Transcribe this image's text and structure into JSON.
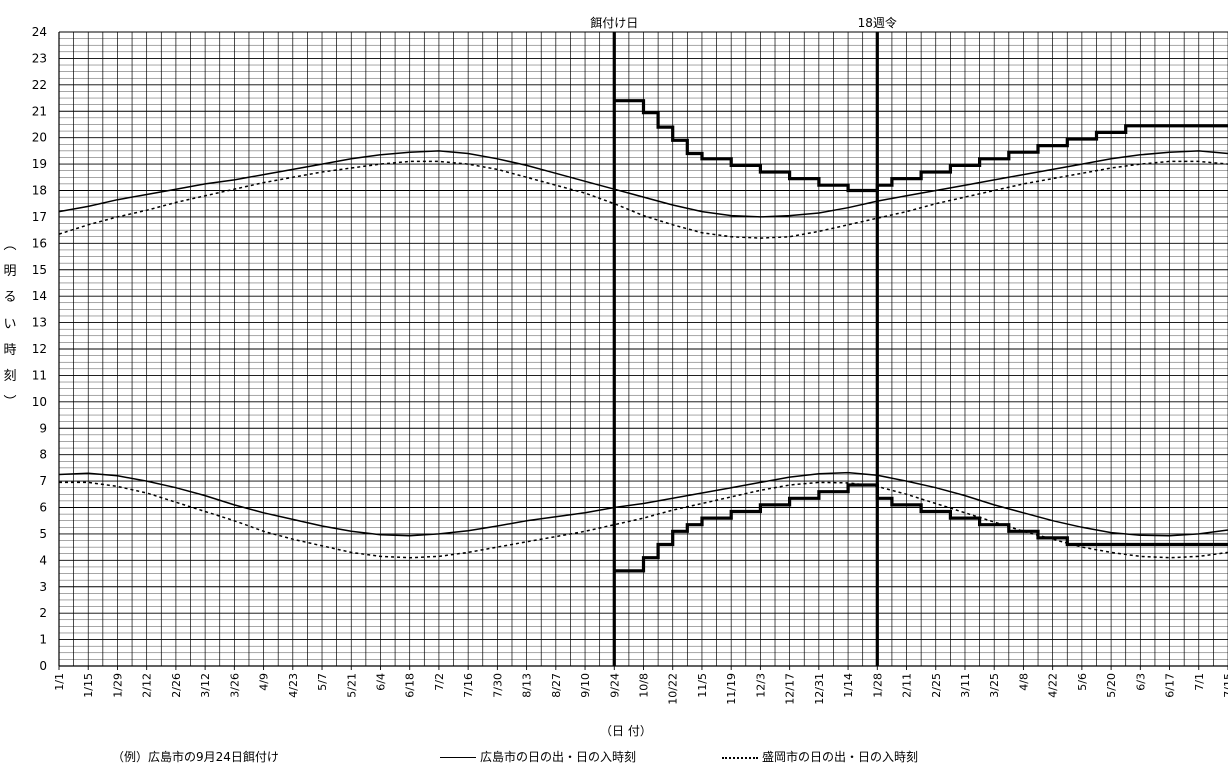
{
  "chart_data": {
    "type": "line",
    "title": "",
    "xlabel": "（日 付）",
    "ylabel": "（明るい時刻）",
    "ylim": [
      0,
      24
    ],
    "y_ticks": [
      0,
      1,
      2,
      3,
      4,
      5,
      6,
      7,
      8,
      9,
      10,
      11,
      12,
      13,
      14,
      15,
      16,
      17,
      18,
      19,
      20,
      21,
      22,
      23,
      24
    ],
    "x_tick_labels": [
      "1/1",
      "1/15",
      "1/29",
      "2/12",
      "2/26",
      "3/12",
      "3/26",
      "4/9",
      "4/23",
      "5/7",
      "5/21",
      "6/4",
      "6/18",
      "7/2",
      "7/16",
      "7/30",
      "8/13",
      "8/27",
      "9/10",
      "9/24",
      "10/8",
      "10/22",
      "11/5",
      "11/19",
      "12/3",
      "12/17",
      "12/31",
      "1/14",
      "1/28",
      "2/11",
      "2/25",
      "3/11",
      "3/25",
      "4/8",
      "4/22",
      "5/6",
      "5/20",
      "6/3",
      "6/17",
      "7/1",
      "7/15"
    ],
    "xlim": [
      0,
      560
    ],
    "grid": true,
    "annotations": [
      {
        "text": "餌付け日",
        "x": 266
      },
      {
        "text": "18週令",
        "x": 392
      }
    ],
    "example_note": "（例）広島市の9月24日餌付け",
    "legend": [
      {
        "name": "広島市の日の出・日の入時刻",
        "style": "solid"
      },
      {
        "name": "盛岡市の日の出・日の入時刻",
        "style": "dotted"
      }
    ],
    "series": [
      {
        "name": "広島市の日の出・日の入時刻",
        "style": "solid",
        "part": "sunset",
        "x": [
          0,
          14,
          28,
          42,
          56,
          70,
          84,
          98,
          112,
          126,
          140,
          154,
          168,
          182,
          196,
          210,
          224,
          238,
          252,
          266,
          280,
          294,
          308,
          322,
          336,
          350,
          364,
          378,
          392,
          406,
          420,
          434,
          448,
          462,
          476,
          490,
          504,
          518,
          532,
          546,
          560
        ],
        "y": [
          17.2,
          17.4,
          17.65,
          17.85,
          18.05,
          18.25,
          18.4,
          18.6,
          18.8,
          19.0,
          19.2,
          19.35,
          19.45,
          19.5,
          19.4,
          19.2,
          18.95,
          18.65,
          18.35,
          18.05,
          17.75,
          17.45,
          17.2,
          17.05,
          17.0,
          17.05,
          17.15,
          17.35,
          17.6,
          17.8,
          18.0,
          18.2,
          18.4,
          18.6,
          18.8,
          19.0,
          19.2,
          19.35,
          19.45,
          19.5,
          19.4
        ]
      },
      {
        "name": "広島市の日の出・日の入時刻",
        "style": "solid",
        "part": "sunrise",
        "x": [
          0,
          14,
          28,
          42,
          56,
          70,
          84,
          98,
          112,
          126,
          140,
          154,
          168,
          182,
          196,
          210,
          224,
          238,
          252,
          266,
          280,
          294,
          308,
          322,
          336,
          350,
          364,
          378,
          392,
          406,
          420,
          434,
          448,
          462,
          476,
          490,
          504,
          518,
          532,
          546,
          560
        ],
        "y": [
          7.25,
          7.3,
          7.2,
          7.0,
          6.75,
          6.45,
          6.1,
          5.8,
          5.55,
          5.3,
          5.1,
          4.97,
          4.93,
          5.0,
          5.12,
          5.3,
          5.5,
          5.65,
          5.8,
          6.0,
          6.15,
          6.35,
          6.55,
          6.75,
          6.95,
          7.15,
          7.28,
          7.32,
          7.22,
          7.0,
          6.75,
          6.45,
          6.1,
          5.8,
          5.5,
          5.25,
          5.05,
          4.95,
          4.93,
          5.0,
          5.15
        ]
      },
      {
        "name": "盛岡市の日の出・日の入時刻",
        "style": "dotted",
        "part": "sunset",
        "x": [
          0,
          14,
          28,
          42,
          56,
          70,
          84,
          98,
          112,
          126,
          140,
          154,
          168,
          182,
          196,
          210,
          224,
          238,
          252,
          266,
          280,
          294,
          308,
          322,
          336,
          350,
          364,
          378,
          392,
          406,
          420,
          434,
          448,
          462,
          476,
          490,
          504,
          518,
          532,
          546,
          560
        ],
        "y": [
          16.35,
          16.7,
          17.0,
          17.25,
          17.55,
          17.8,
          18.05,
          18.3,
          18.5,
          18.7,
          18.85,
          19.0,
          19.1,
          19.1,
          19.0,
          18.8,
          18.5,
          18.2,
          17.9,
          17.5,
          17.05,
          16.7,
          16.4,
          16.25,
          16.2,
          16.25,
          16.45,
          16.7,
          16.95,
          17.2,
          17.5,
          17.75,
          18.0,
          18.25,
          18.45,
          18.65,
          18.85,
          19.0,
          19.1,
          19.1,
          19.0
        ]
      },
      {
        "name": "盛岡市の日の出・日の入時刻",
        "style": "dotted",
        "part": "sunrise",
        "x": [
          0,
          14,
          28,
          42,
          56,
          70,
          84,
          98,
          112,
          126,
          140,
          154,
          168,
          182,
          196,
          210,
          224,
          238,
          252,
          266,
          280,
          294,
          308,
          322,
          336,
          350,
          364,
          378,
          392,
          406,
          420,
          434,
          448,
          462,
          476,
          490,
          504,
          518,
          532,
          546,
          560
        ],
        "y": [
          6.95,
          6.95,
          6.8,
          6.55,
          6.2,
          5.85,
          5.5,
          5.1,
          4.8,
          4.55,
          4.3,
          4.15,
          4.1,
          4.15,
          4.3,
          4.5,
          4.7,
          4.9,
          5.1,
          5.35,
          5.6,
          5.9,
          6.15,
          6.4,
          6.65,
          6.85,
          6.95,
          6.93,
          6.8,
          6.5,
          6.15,
          5.8,
          5.45,
          5.1,
          4.8,
          4.5,
          4.3,
          4.15,
          4.1,
          4.15,
          4.3
        ]
      },
      {
        "name": "light-program-end",
        "style": "thick-step",
        "part": "end",
        "x": [
          266,
          280,
          280,
          287,
          287,
          294,
          294,
          301,
          301,
          308,
          308,
          322,
          322,
          336,
          336,
          350,
          350,
          364,
          364,
          378,
          378,
          392,
          392,
          399,
          399,
          413,
          413,
          427,
          427,
          441,
          441,
          455,
          455,
          469,
          469,
          483,
          483,
          497,
          497,
          511,
          511,
          525,
          525,
          560
        ],
        "y": [
          21.4,
          21.4,
          20.95,
          20.95,
          20.4,
          20.4,
          19.9,
          19.9,
          19.4,
          19.4,
          19.2,
          19.2,
          18.95,
          18.95,
          18.7,
          18.7,
          18.45,
          18.45,
          18.2,
          18.2,
          18.0,
          18.0,
          18.2,
          18.2,
          18.45,
          18.45,
          18.7,
          18.7,
          18.95,
          18.95,
          19.2,
          19.2,
          19.45,
          19.45,
          19.7,
          19.7,
          19.95,
          19.95,
          20.2,
          20.2,
          20.45,
          20.45,
          20.45,
          20.45
        ]
      },
      {
        "name": "light-program-start",
        "style": "thick-step",
        "part": "start",
        "x": [
          266,
          280,
          280,
          287,
          287,
          294,
          294,
          301,
          301,
          308,
          308,
          322,
          322,
          336,
          336,
          350,
          350,
          364,
          364,
          378,
          378,
          392,
          392,
          399,
          399,
          413,
          413,
          427,
          427,
          441,
          441,
          455,
          455,
          469,
          469,
          483,
          483,
          497,
          497,
          511,
          511,
          525,
          525,
          560
        ],
        "y": [
          3.6,
          3.6,
          4.1,
          4.1,
          4.6,
          4.6,
          5.1,
          5.1,
          5.35,
          5.35,
          5.6,
          5.6,
          5.85,
          5.85,
          6.1,
          6.1,
          6.35,
          6.35,
          6.6,
          6.6,
          6.85,
          6.85,
          6.35,
          6.35,
          6.1,
          6.1,
          5.85,
          5.85,
          5.6,
          5.6,
          5.35,
          5.35,
          5.1,
          5.1,
          4.85,
          4.85,
          4.6,
          4.6,
          4.6,
          4.6,
          4.6,
          4.6,
          4.6,
          4.6
        ]
      }
    ]
  },
  "labels": {
    "ylabel_chars": [
      "︵",
      "明",
      "る",
      "い",
      "時",
      "刻",
      "︶"
    ],
    "xlabel": "（日 付）",
    "example_note": "（例）広島市の9月24日餌付け",
    "legend_solid": "広島市の日の出・日の入時刻",
    "legend_dotted": "盛岡市の日の出・日の入時刻"
  }
}
